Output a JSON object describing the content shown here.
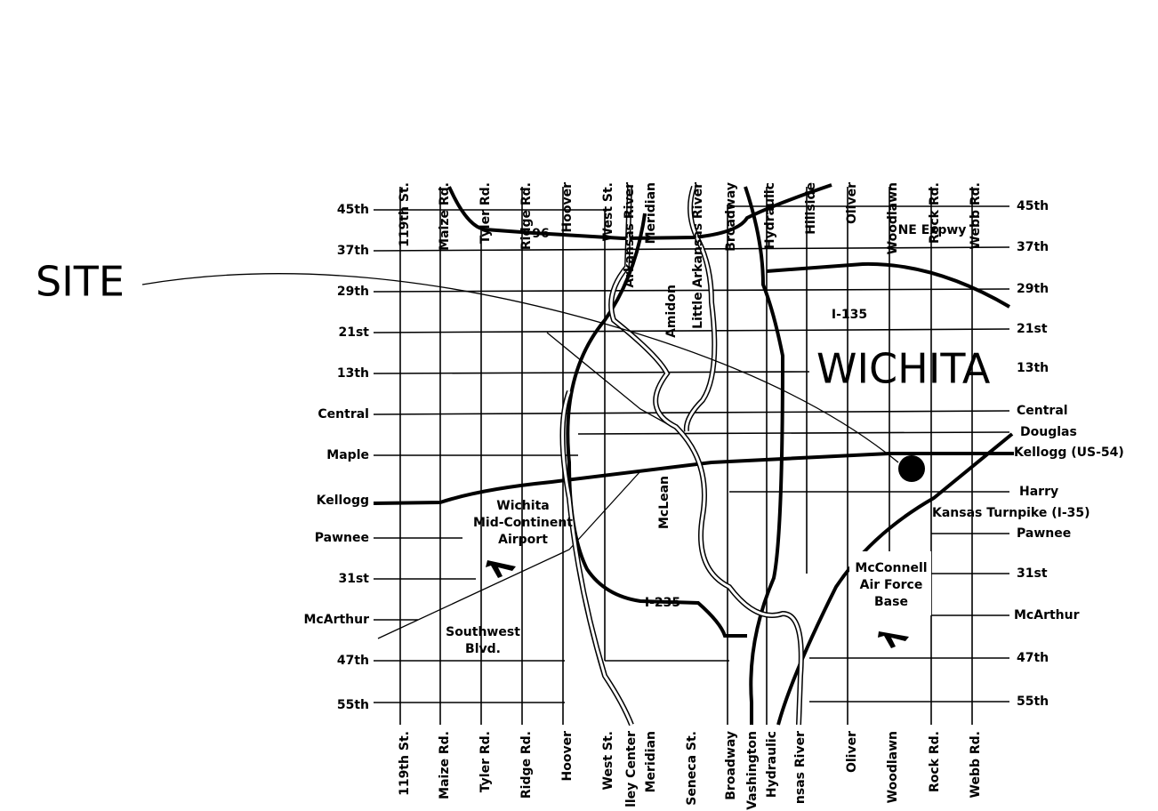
{
  "top_labels": [
    "119th St.",
    "Maize Rd.",
    "Tyler Rd.",
    "Ridge Rd.",
    "Hoover",
    "West St.",
    "Arkansas River",
    "Meridian",
    "Little Arkansas River",
    "Broadway",
    "Hydraulic",
    "Hillside",
    "Oliver",
    "Woodlawn",
    "Rock Rd.",
    "Webb Rd."
  ],
  "bottom_labels": [
    "119th St.",
    "Maize Rd.",
    "Tyler Rd.",
    "Ridge Rd.",
    "Hoover",
    "West St.",
    "lley Center",
    "Meridian",
    "Seneca St.",
    "Broadway",
    "Vashington",
    "Hydraulic",
    "nsas River",
    "Oliver",
    "Woodlawn",
    "Rock Rd.",
    "Webb Rd."
  ],
  "left_labels": [
    "45th",
    "37th",
    "29th",
    "21st",
    "13th",
    "Central",
    "Maple",
    "Kellogg",
    "Pawnee",
    "31st",
    "McArthur",
    "47th",
    "55th"
  ],
  "right_labels": [
    "45th",
    "37th",
    "29th",
    "21st",
    "13th",
    "Central",
    "Douglas",
    "Kellogg (US-54)",
    "Harry",
    "Kansas Turnpike (I-35)",
    "Pawnee",
    "31st",
    "McArthur",
    "47th",
    "55th"
  ],
  "annotations": {
    "site": "SITE",
    "city": "WICHITA",
    "hwy96": "96",
    "ne_expwy": "NE Expwy",
    "i135": "I-135",
    "amidon": "Amidon",
    "mclean": "McLean",
    "i235": "I-235",
    "airport": [
      "Wichita",
      "Mid-Continent",
      "Airport"
    ],
    "southwest_blvd": [
      "Southwest",
      "Blvd."
    ],
    "air_force_base": [
      "McConnell",
      "Air Force",
      "Base"
    ]
  }
}
